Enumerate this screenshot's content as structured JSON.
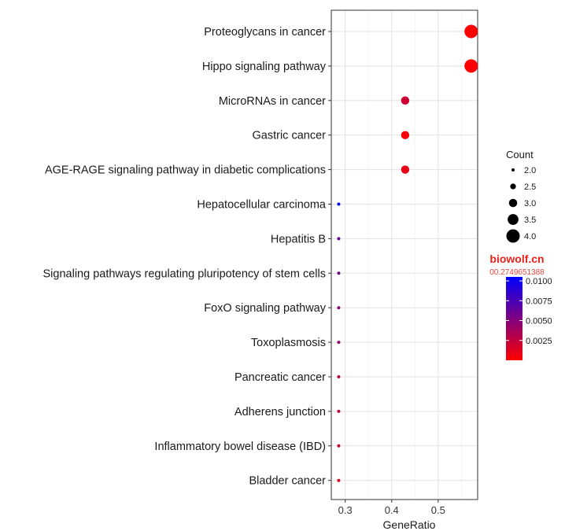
{
  "chart_data": {
    "type": "scatter",
    "title": "",
    "xlabel": "GeneRatio",
    "ylabel": "",
    "xlim": [
      0.27,
      0.585
    ],
    "xticks": [
      "0.3",
      "0.4",
      "0.5"
    ],
    "xtick_values": [
      0.3,
      0.4,
      0.5
    ],
    "grid": true,
    "categories": [
      "Proteoglycans in cancer",
      "Hippo signaling pathway",
      "MicroRNAs in cancer",
      "Gastric cancer",
      "AGE-RAGE signaling pathway in diabetic complications",
      "Hepatocellular carcinoma",
      "Hepatitis B",
      "Signaling pathways regulating pluripotency of stem cells",
      "FoxO signaling pathway",
      "Toxoplasmosis",
      "Pancreatic cancer",
      "Adherens junction",
      "Inflammatory bowel disease (IBD)",
      "Bladder cancer"
    ],
    "points": [
      {
        "x": 0.571,
        "count": 4,
        "pvalue": 0.0001
      },
      {
        "x": 0.571,
        "count": 4,
        "pvalue": 5e-05
      },
      {
        "x": 0.429,
        "count": 3,
        "pvalue": 0.0022
      },
      {
        "x": 0.429,
        "count": 3,
        "pvalue": 0.0004
      },
      {
        "x": 0.429,
        "count": 3,
        "pvalue": 0.0009
      },
      {
        "x": 0.286,
        "count": 2,
        "pvalue": 0.0105
      },
      {
        "x": 0.286,
        "count": 2,
        "pvalue": 0.0062
      },
      {
        "x": 0.286,
        "count": 2,
        "pvalue": 0.0058
      },
      {
        "x": 0.286,
        "count": 2,
        "pvalue": 0.005
      },
      {
        "x": 0.286,
        "count": 2,
        "pvalue": 0.0045
      },
      {
        "x": 0.286,
        "count": 2,
        "pvalue": 0.0028
      },
      {
        "x": 0.286,
        "count": 2,
        "pvalue": 0.0025
      },
      {
        "x": 0.286,
        "count": 2,
        "pvalue": 0.0022
      },
      {
        "x": 0.286,
        "count": 2,
        "pvalue": 0.0015
      }
    ],
    "size_legend": {
      "title": "Count",
      "values": [
        2.0,
        2.5,
        3.0,
        3.5,
        4.0
      ],
      "labels": [
        "2.0",
        "2.5",
        "3.0",
        "3.5",
        "4.0"
      ]
    },
    "color_legend": {
      "title": "",
      "range": [
        0.0,
        0.0105
      ],
      "tick_values": [
        0.0025,
        0.005,
        0.0075,
        0.01
      ],
      "tick_labels": [
        "0.0025",
        "0.0050",
        "0.0075",
        "0.0100"
      ],
      "low_color": "#ff0000",
      "high_color": "#0000ff"
    },
    "legend_placement": "right"
  },
  "watermark": {
    "text": "biowolf.cn",
    "subtext": "00.2749651388"
  }
}
